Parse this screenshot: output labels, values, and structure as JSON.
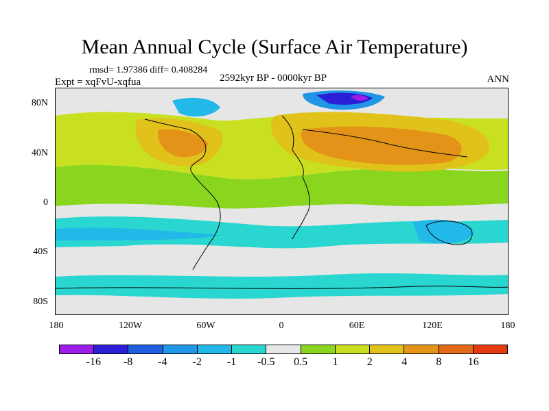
{
  "title": "Mean Annual Cycle (Surface Air Temperature)",
  "stats": "rmsd= 1.97386 diff= 0.408284",
  "experiment": "Expt = xqFvU-xqfua",
  "period": "2592kyr BP - 0000kyr BP",
  "season": "ANN",
  "lat_labels": [
    "80N",
    "40N",
    "0",
    "40S",
    "80S"
  ],
  "lon_labels": [
    "180",
    "120W",
    "60W",
    "0",
    "60E",
    "120E",
    "180"
  ],
  "colorbar": {
    "labels": [
      "-16",
      "-8",
      "-4",
      "-2",
      "-1",
      "-0.5",
      "0.5",
      "1",
      "2",
      "4",
      "8",
      "16"
    ],
    "colors": [
      "#9b1fe8",
      "#2a1fd6",
      "#1f5fe0",
      "#2196e6",
      "#22b8e8",
      "#2ad6d0",
      "#e6e6e6",
      "#8ad61f",
      "#c8e01f",
      "#e0c21a",
      "#e39418",
      "#e36a16",
      "#e33a12"
    ]
  }
}
